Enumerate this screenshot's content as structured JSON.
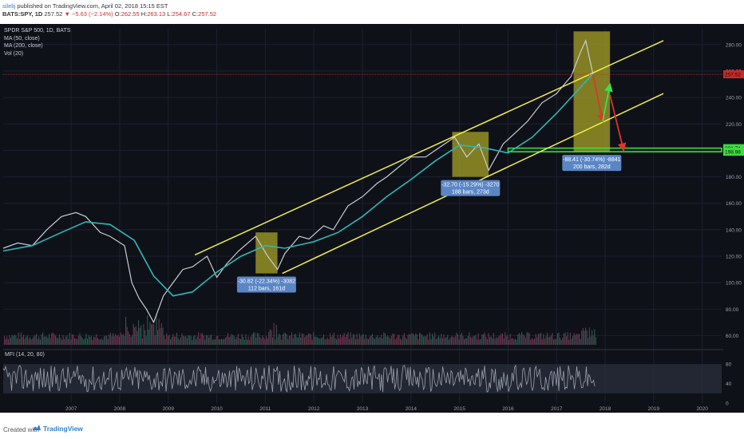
{
  "header": {
    "author": "silelij",
    "published": "published on TradingView.com, April 02, 2018 15:15 EST",
    "symbol": "BATS:SPY, 1D",
    "last_price": "257.52",
    "change_arrow": "▼",
    "change": "−5.63 (−2.14%)",
    "o_label": "O:",
    "o_value": "262.55",
    "h_label": "H:",
    "h_value": "263.13",
    "l_label": "L:",
    "l_value": "254.67",
    "c_label": "C:",
    "c_value": "257.52"
  },
  "legend": {
    "title": "SPDR S&P 500, 1D, BATS",
    "ma50": "MA (50, close)",
    "ma200": "MA (200, close)",
    "vol": "Vol (20)",
    "mfi": "MFI (14, 20, 80)"
  },
  "footer": {
    "created": "Created with",
    "brand": "TradingView"
  },
  "colors": {
    "background": "#0f1118",
    "price": "#c9ccd3",
    "ma": "#2fb7b7",
    "channel": "#f4ef4a",
    "box": "#a7a127",
    "support": "#38e13a",
    "projection_down": "#e0342c",
    "projection_up": "#3be04b",
    "annotation_bg": "#5b86c6",
    "last_price_tag": "#c62a2a",
    "support_tag": "#3fdc3f"
  },
  "chart_data": {
    "type": "line",
    "symbol": "SPY",
    "x_ticks": [
      "2007",
      "2008",
      "2009",
      "2010",
      "2011",
      "2012",
      "2013",
      "2014",
      "2015",
      "2016",
      "2017",
      "2018",
      "2019",
      "2020"
    ],
    "price_axis_ticks": [
      "280.00",
      "260.00",
      "240.00",
      "220.00",
      "200.00",
      "180.00",
      "160.00",
      "140.00",
      "120.00",
      "100.00",
      "80.00",
      "60.00"
    ],
    "price_axis_range": [
      53,
      292
    ],
    "x_range": [
      2006.1,
      2020.9
    ],
    "price_series": {
      "x": [
        2006.1,
        2006.4,
        2006.7,
        2007.0,
        2007.3,
        2007.6,
        2007.8,
        2008.1,
        2008.3,
        2008.6,
        2008.75,
        2008.9,
        2009.05,
        2009.2,
        2009.4,
        2009.6,
        2009.8,
        2010.0,
        2010.3,
        2010.5,
        2010.7,
        2010.95,
        2011.3,
        2011.55,
        2011.75,
        2011.9,
        2012.2,
        2012.4,
        2012.7,
        2012.9,
        2013.2,
        2013.5,
        2013.8,
        2014.0,
        2014.2,
        2014.5,
        2014.8,
        2015.0,
        2015.4,
        2015.65,
        2015.9,
        2016.1,
        2016.4,
        2016.7,
        2016.9,
        2017.2,
        2017.5,
        2017.8,
        2018.0,
        2018.1,
        2018.2,
        2018.25
      ],
      "y": [
        126,
        130,
        128,
        140,
        150,
        153,
        150,
        138,
        135,
        128,
        100,
        88,
        80,
        70,
        90,
        100,
        110,
        112,
        120,
        104,
        114,
        124,
        135,
        120,
        110,
        122,
        135,
        133,
        143,
        140,
        158,
        165,
        175,
        180,
        186,
        195,
        195,
        200,
        210,
        195,
        205,
        185,
        205,
        215,
        222,
        236,
        243,
        256,
        275,
        283,
        266,
        257.52
      ]
    },
    "ma200_series": {
      "x": [
        2006.1,
        2006.7,
        2007.3,
        2007.8,
        2008.3,
        2008.8,
        2009.2,
        2009.6,
        2010.0,
        2010.5,
        2011.0,
        2011.5,
        2011.9,
        2012.5,
        2013.0,
        2013.5,
        2014.0,
        2014.5,
        2015.0,
        2015.5,
        2016.0,
        2016.5,
        2017.0,
        2017.5,
        2018.0,
        2018.25
      ],
      "y": [
        124,
        128,
        138,
        146,
        144,
        132,
        105,
        90,
        93,
        108,
        120,
        128,
        126,
        131,
        138,
        150,
        165,
        178,
        192,
        204,
        202,
        198,
        210,
        228,
        248,
        258
      ]
    },
    "channel_upper": {
      "start": [
        2010.05,
        121
      ],
      "end": [
        2019.7,
        283
      ]
    },
    "channel_lower": {
      "start": [
        2011.85,
        107
      ],
      "end": [
        2019.7,
        243
      ]
    },
    "support_zone": {
      "x_start": 2016.5,
      "x_end": 2020.9,
      "upper": 201.71,
      "lower": 198.98
    },
    "support_labels": [
      "201.71",
      "198.98"
    ],
    "last_price_label": "257.52",
    "boxes": [
      {
        "x_start": 2011.3,
        "x_end": 2011.75,
        "y_low": 107,
        "y_high": 138,
        "label_line1": "-30.82 (-22.34%) -3082",
        "label_line2": "112 bars, 161d"
      },
      {
        "x_start": 2015.35,
        "x_end": 2016.1,
        "y_low": 180,
        "y_high": 214,
        "label_line1": "-32.70 (-15.29%) -3270",
        "label_line2": "188 bars, 273d"
      },
      {
        "x_start": 2017.85,
        "x_end": 2018.6,
        "y_low": 199,
        "y_high": 290,
        "label_line1": "-88.41 (-30.74%) -8841",
        "label_line2": "200 bars, 282d"
      }
    ],
    "projection_arrows": [
      {
        "color": "red",
        "points": [
          [
            2018.25,
            257
          ],
          [
            2018.45,
            222
          ]
        ]
      },
      {
        "color": "green",
        "points": [
          [
            2018.45,
            222
          ],
          [
            2018.6,
            250
          ]
        ]
      },
      {
        "color": "red",
        "points": [
          [
            2018.6,
            242
          ],
          [
            2018.88,
            200
          ]
        ]
      }
    ],
    "volume_axis_tick": "80.00",
    "mfi_axis_ticks": [
      "80",
      "40",
      "0"
    ],
    "mfi_range": [
      0,
      100
    ]
  }
}
